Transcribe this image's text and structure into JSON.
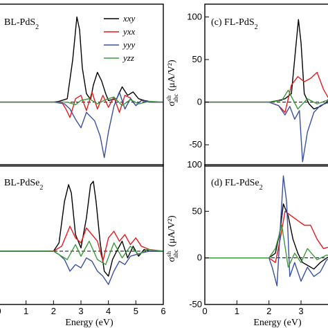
{
  "colors": {
    "xxy": "#000000",
    "yxx": "#e41a1c",
    "yyy": "#3a4fa3",
    "yzz": "#3b9a3b"
  },
  "chart_data": [
    {
      "type": "line",
      "panel": "a",
      "label_prefix": "BL-PdS",
      "label_sub": "2",
      "xlim": [
        0,
        6
      ],
      "ylim": [
        -75,
        115
      ],
      "xticks": [],
      "yticks": [],
      "legend_position": "top-right",
      "series": [
        {
          "name": "xxy",
          "color": "#000000",
          "x": [
            0,
            2.0,
            2.2,
            2.5,
            2.7,
            2.85,
            2.95,
            3.05,
            3.2,
            3.35,
            3.45,
            3.6,
            3.75,
            3.9,
            4.0,
            4.15,
            4.3,
            4.5,
            4.7,
            4.9,
            5.1,
            5.3,
            5.6,
            6.0
          ],
          "y": [
            0,
            0,
            1,
            4,
            50,
            100,
            85,
            40,
            10,
            3,
            20,
            35,
            25,
            10,
            2,
            3,
            4,
            18,
            8,
            12,
            4,
            2,
            0,
            0
          ]
        },
        {
          "name": "yxx",
          "color": "#e41a1c",
          "x": [
            0,
            2.0,
            2.3,
            2.45,
            2.6,
            2.8,
            3.0,
            3.2,
            3.4,
            3.6,
            3.8,
            4.0,
            4.2,
            4.4,
            4.6,
            4.8,
            5.0,
            5.2,
            5.5,
            6.0
          ],
          "y": [
            0,
            0,
            0,
            -8,
            -18,
            4,
            8,
            -10,
            12,
            -8,
            8,
            -6,
            6,
            -12,
            8,
            5,
            -4,
            2,
            0,
            0
          ]
        },
        {
          "name": "yyy",
          "color": "#3a4fa3",
          "x": [
            0,
            2.0,
            2.4,
            2.6,
            2.8,
            3.0,
            3.2,
            3.5,
            3.7,
            3.85,
            4.0,
            4.2,
            4.4,
            4.6,
            4.8,
            5.0,
            5.2,
            5.5,
            6.0
          ],
          "y": [
            0,
            0,
            -2,
            -8,
            -20,
            -30,
            -12,
            -22,
            -40,
            -65,
            -35,
            -5,
            12,
            -8,
            4,
            -4,
            2,
            0,
            0
          ]
        },
        {
          "name": "yzz",
          "color": "#3b9a3b",
          "x": [
            0,
            2.0,
            2.5,
            2.8,
            3.0,
            3.3,
            3.6,
            3.9,
            4.2,
            4.5,
            4.8,
            5.1,
            5.5,
            6.0
          ],
          "y": [
            0,
            0,
            0,
            -3,
            2,
            4,
            -2,
            3,
            6,
            -4,
            3,
            -2,
            1,
            0
          ]
        }
      ]
    },
    {
      "type": "line",
      "panel": "c",
      "label_prefix": "(c) FL-PdS",
      "label_sub": "2",
      "xlim": [
        0,
        4.1
      ],
      "ylim": [
        -75,
        115
      ],
      "xticks": [],
      "yticks": [
        "100",
        "50",
        "0",
        "-50"
      ],
      "ytick_values": [
        100,
        50,
        0,
        -50
      ],
      "series": [
        {
          "name": "xxy",
          "color": "#000000",
          "x": [
            0,
            2.0,
            2.3,
            2.5,
            2.7,
            2.85,
            2.92,
            3.0,
            3.1,
            3.25,
            3.4,
            3.6,
            3.8,
            4.1
          ],
          "y": [
            0,
            0,
            2,
            4,
            10,
            70,
            97,
            70,
            10,
            -2,
            -8,
            -5,
            0,
            20
          ]
        },
        {
          "name": "yxx",
          "color": "#e41a1c",
          "x": [
            0,
            2.0,
            2.3,
            2.5,
            2.7,
            2.9,
            3.1,
            3.3,
            3.5,
            3.7,
            3.9,
            4.1
          ],
          "y": [
            0,
            0,
            -4,
            -12,
            20,
            30,
            24,
            28,
            35,
            15,
            2,
            30
          ]
        },
        {
          "name": "yyy",
          "color": "#3a4fa3",
          "x": [
            0,
            2.0,
            2.3,
            2.5,
            2.65,
            2.8,
            2.95,
            3.05,
            3.2,
            3.4,
            3.6,
            3.8,
            4.1
          ],
          "y": [
            0,
            0,
            -4,
            -15,
            -5,
            -20,
            -10,
            -70,
            -35,
            -12,
            -4,
            -1,
            0
          ]
        },
        {
          "name": "yzz",
          "color": "#3b9a3b",
          "x": [
            0,
            2.0,
            2.4,
            2.6,
            2.9,
            3.2,
            3.5,
            3.8,
            4.1
          ],
          "y": [
            0,
            0,
            2,
            14,
            -8,
            4,
            -2,
            2,
            0
          ]
        }
      ]
    },
    {
      "type": "line",
      "panel": "b",
      "label_prefix": "BL-PdSe",
      "label_sub": "2",
      "xlim": [
        0,
        6
      ],
      "ylim": [
        -32,
        52
      ],
      "xticks": [
        "0",
        "1",
        "2",
        "3",
        "4",
        "5",
        "6"
      ],
      "xtick_values": [
        0,
        1,
        2,
        3,
        4,
        5,
        6
      ],
      "yticks": [],
      "xlabel": "Energy (eV)",
      "series": [
        {
          "name": "xxy",
          "color": "#000000",
          "x": [
            0,
            2.0,
            2.2,
            2.4,
            2.55,
            2.65,
            2.8,
            3.0,
            3.2,
            3.35,
            3.45,
            3.55,
            3.7,
            3.85,
            4.0,
            4.15,
            4.3,
            4.5,
            4.7,
            4.9,
            5.1,
            5.3,
            5.5,
            5.8,
            6.0
          ],
          "y": [
            0,
            0,
            5,
            30,
            40,
            35,
            10,
            2,
            20,
            40,
            42,
            30,
            5,
            -12,
            -15,
            -5,
            0,
            6,
            -4,
            3,
            -3,
            1,
            0,
            0,
            0
          ]
        },
        {
          "name": "yxx",
          "color": "#e41a1c",
          "x": [
            0,
            2.0,
            2.3,
            2.6,
            2.8,
            3.0,
            3.2,
            3.4,
            3.6,
            3.8,
            4.0,
            4.2,
            4.4,
            4.6,
            4.8,
            5.0,
            5.2,
            5.5,
            6.0
          ],
          "y": [
            0,
            0,
            3,
            15,
            8,
            5,
            14,
            10,
            6,
            -6,
            8,
            12,
            6,
            10,
            4,
            8,
            3,
            1,
            0
          ]
        },
        {
          "name": "yyy",
          "color": "#3a4fa3",
          "x": [
            0,
            2.0,
            2.2,
            2.4,
            2.6,
            2.8,
            3.0,
            3.2,
            3.4,
            3.6,
            3.8,
            4.0,
            4.2,
            4.4,
            4.6,
            4.8,
            5.0,
            5.2,
            5.5,
            6.0
          ],
          "y": [
            0,
            0,
            -2,
            -5,
            -12,
            -8,
            -10,
            -4,
            -6,
            -12,
            -15,
            -20,
            -12,
            -6,
            -8,
            -3,
            -2,
            -1,
            0,
            0
          ]
        },
        {
          "name": "yzz",
          "color": "#3b9a3b",
          "x": [
            0,
            2.0,
            2.3,
            2.5,
            2.8,
            3.0,
            3.3,
            3.6,
            3.9,
            4.2,
            4.5,
            4.8,
            5.1,
            5.4,
            6.0
          ],
          "y": [
            0,
            0,
            -3,
            -5,
            4,
            -3,
            6,
            -5,
            -8,
            5,
            -4,
            3,
            -2,
            1,
            0
          ]
        }
      ]
    },
    {
      "type": "line",
      "panel": "d",
      "label_prefix": "(d) FL-PdSe",
      "label_sub": "2",
      "xlim": [
        0,
        4.1
      ],
      "ylim": [
        -50,
        100
      ],
      "xticks": [
        "0",
        "1",
        "2",
        "3",
        "4"
      ],
      "xtick_values": [
        0,
        1,
        2,
        3,
        4
      ],
      "yticks": [
        "100",
        "50",
        "0",
        "-50"
      ],
      "ytick_values": [
        100,
        50,
        0,
        -50
      ],
      "xlabel": "Energy (eV)",
      "series": [
        {
          "name": "xxy",
          "color": "#000000",
          "x": [
            0,
            2.0,
            2.2,
            2.35,
            2.45,
            2.6,
            2.75,
            2.9,
            3.05,
            3.2,
            3.4,
            3.6,
            3.8,
            4.1
          ],
          "y": [
            0,
            0,
            5,
            30,
            58,
            45,
            20,
            5,
            -5,
            -8,
            -12,
            -5,
            0,
            5
          ]
        },
        {
          "name": "yxx",
          "color": "#e41a1c",
          "x": [
            0,
            2.0,
            2.2,
            2.35,
            2.5,
            2.7,
            2.9,
            3.1,
            3.3,
            3.5,
            3.7,
            3.9,
            4.1
          ],
          "y": [
            0,
            0,
            -5,
            20,
            50,
            45,
            40,
            35,
            35,
            20,
            10,
            12,
            15
          ]
        },
        {
          "name": "yyy",
          "color": "#3a4fa3",
          "x": [
            0,
            2.0,
            2.1,
            2.25,
            2.35,
            2.45,
            2.55,
            2.65,
            2.8,
            3.0,
            3.2,
            3.4,
            3.6,
            3.8,
            4.1
          ],
          "y": [
            0,
            0,
            -10,
            -30,
            30,
            88,
            60,
            -20,
            -5,
            -25,
            -10,
            -20,
            -15,
            -2,
            0
          ]
        },
        {
          "name": "yzz",
          "color": "#3b9a3b",
          "x": [
            0,
            2.0,
            2.2,
            2.4,
            2.6,
            2.8,
            3.0,
            3.2,
            3.5,
            3.8,
            4.1
          ],
          "y": [
            0,
            0,
            10,
            35,
            -10,
            5,
            -5,
            10,
            -2,
            3,
            0
          ]
        }
      ]
    }
  ],
  "legend": [
    "xxy",
    "yxx",
    "yyy",
    "yzz"
  ],
  "ylabel_c": {
    "sigma": "σ",
    "sup": "sh",
    "sub": "abc",
    "unit": "(μA/V²)"
  },
  "ylabel_d": {
    "sigma": "σ",
    "sup": "sh",
    "sub": "abc",
    "unit": "(μA/V²)"
  }
}
